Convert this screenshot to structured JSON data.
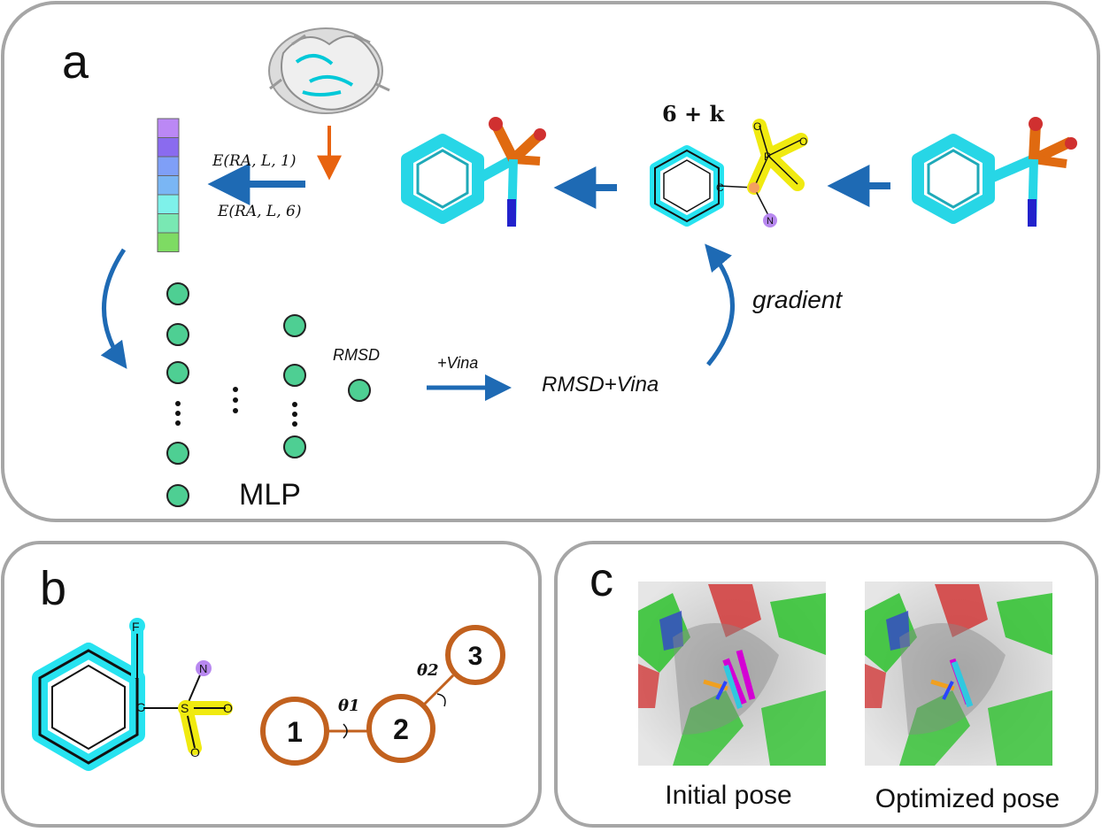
{
  "panels": {
    "a": {
      "label": "a"
    },
    "b": {
      "label": "b"
    },
    "c": {
      "label": "c"
    }
  },
  "panel_a": {
    "energy_top": "E(RA, L, 1)",
    "energy_bottom": "E(RA, L, 6)",
    "dof_label": "6 + k",
    "atom_c": "C",
    "atom_p": "P",
    "atom_n": "N",
    "atom_o1": "O",
    "atom_o2": "O",
    "rmsd_label": "RMSD",
    "vina_arrow_label": "+Vina",
    "loss_label": "RMSD+Vina",
    "gradient_label": "gradient",
    "mlp_label": "MLP",
    "feature_colors": [
      "#bb88f5",
      "#8a6bef",
      "#7f9ff7",
      "#7ab6f4",
      "#7ef1ea",
      "#79e8b3",
      "#7edb63"
    ],
    "neuron_color": "#4ecf93",
    "arrow_color": "#1e6ab4",
    "protein_arrow_color": "#e8630f"
  },
  "panel_b": {
    "atom_f": "F",
    "atom_c": "C",
    "atom_s": "S",
    "atom_n": "N",
    "atom_o1": "O",
    "atom_o2": "O",
    "node1": "1",
    "node2": "2",
    "node3": "3",
    "theta1": "θ1",
    "theta2": "θ2",
    "node_color": "#c2611e"
  },
  "panel_c": {
    "initial_caption": "Initial pose",
    "optimized_caption": "Optimized pose"
  }
}
